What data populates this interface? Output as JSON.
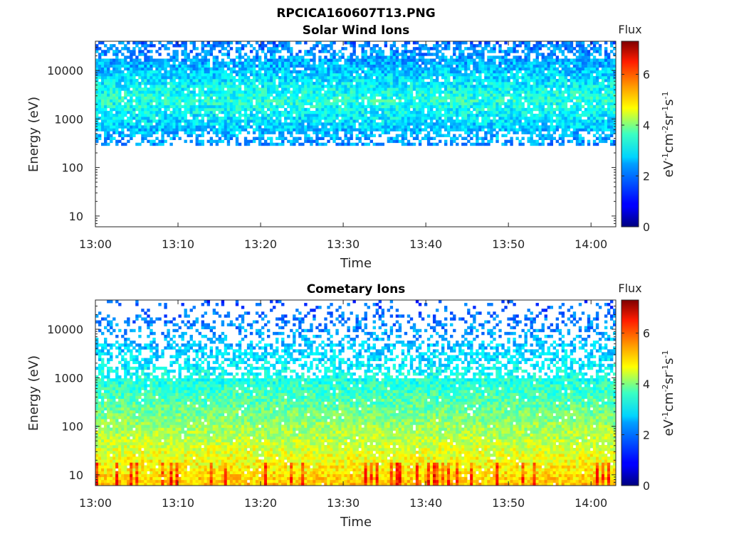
{
  "figure_title": "RPCICA160607T13.PNG",
  "chart_data": [
    {
      "type": "heatmap",
      "title": "Solar Wind Ions",
      "xlabel": "Time",
      "ylabel": "Energy (eV)",
      "x_tick_labels": [
        "13:00",
        "13:10",
        "13:20",
        "13:30",
        "13:40",
        "13:50",
        "14:00"
      ],
      "x_range": [
        "13:00",
        "14:03"
      ],
      "y_scale": "log",
      "y_tick_labels": [
        "10",
        "100",
        "1000",
        "10000"
      ],
      "y_range": [
        6,
        40000
      ],
      "colorbar": {
        "title": "Flux",
        "label": "eV-1cm-2sr-1s-1",
        "range": [
          0,
          7.3
        ],
        "tick_labels": [
          "0",
          "2",
          "4",
          "6"
        ],
        "colormap": "jet"
      },
      "energy_band_eV": [
        290,
        40000
      ],
      "peak_flux_energy_eV": 2500,
      "flux_range_in_band": [
        1,
        3.3
      ],
      "description": "Dense flux between ~300 eV and ~40 keV, strongest (~3) near 1-4 keV; empty below ~300 eV"
    },
    {
      "type": "heatmap",
      "title": "Cometary Ions",
      "xlabel": "Time",
      "ylabel": "Energy (eV)",
      "x_tick_labels": [
        "13:00",
        "13:10",
        "13:20",
        "13:30",
        "13:40",
        "13:50",
        "14:00"
      ],
      "x_range": [
        "13:00",
        "14:03"
      ],
      "y_scale": "log",
      "y_tick_labels": [
        "10",
        "100",
        "1000",
        "10000"
      ],
      "y_range": [
        6,
        40000
      ],
      "colorbar": {
        "title": "Flux",
        "label": "eV-1cm-2sr-1s-1",
        "range": [
          0,
          7.3
        ],
        "tick_labels": [
          "0",
          "2",
          "4",
          "6"
        ],
        "colormap": "jet"
      },
      "energy_band_eV": [
        6,
        40000
      ],
      "peak_flux_energy_eV": 10,
      "flux_range_in_band": [
        1,
        5.5
      ],
      "description": "Flux increases toward low energies (~4.5-5.5 at 6-15 eV), sparse above ~2 keV"
    }
  ]
}
